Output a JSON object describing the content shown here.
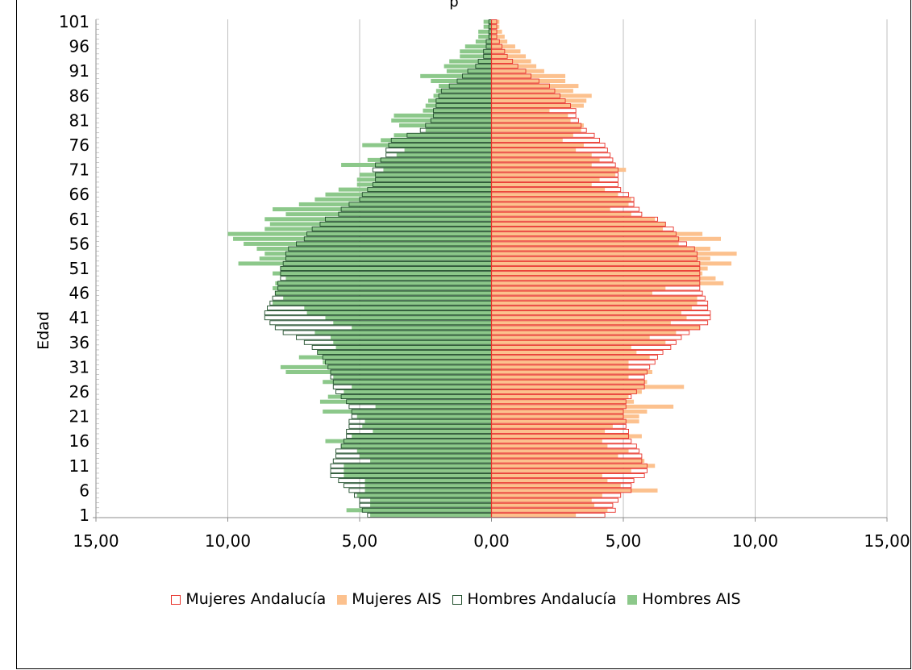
{
  "chart_data": {
    "type": "bar",
    "ylabel": "Edad",
    "xlim": [
      -15,
      15
    ],
    "x_ticks": [
      "15,00",
      "10,00",
      "5,00",
      "0,00",
      "5,00",
      "10,00",
      "15,00"
    ],
    "y_ticks": [
      "1",
      "6",
      "11",
      "16",
      "21",
      "26",
      "31",
      "36",
      "41",
      "46",
      "51",
      "56",
      "61",
      "66",
      "71",
      "76",
      "81",
      "86",
      "91",
      "96",
      "101"
    ],
    "legend_position": "bottom",
    "grid": true,
    "colors": {
      "mujeres_andalucia": "#e8332b",
      "mujeres_ais": "#fcc18e",
      "hombres_andalucia": "#1f4d2a",
      "hombres_ais": "#8cc88a"
    },
    "series": [
      {
        "name": "Mujeres Andalucía",
        "key": "mujeres_andalucia",
        "values": [
          4.3,
          4.7,
          4.6,
          4.8,
          4.9,
          5.3,
          5.3,
          5.4,
          5.8,
          5.9,
          5.9,
          5.7,
          5.7,
          5.6,
          5.5,
          5.3,
          5.2,
          5.2,
          5.1,
          5.1,
          5.0,
          5.0,
          5.1,
          5.1,
          5.3,
          5.5,
          5.8,
          5.8,
          5.8,
          5.9,
          6.0,
          6.2,
          6.3,
          6.5,
          6.8,
          7.0,
          7.2,
          7.5,
          7.9,
          8.2,
          8.3,
          8.3,
          8.2,
          8.2,
          8.1,
          8.0,
          7.9,
          7.9,
          7.9,
          7.9,
          7.9,
          7.9,
          7.8,
          7.8,
          7.7,
          7.4,
          7.1,
          7.0,
          6.9,
          6.6,
          6.3,
          5.7,
          5.6,
          5.4,
          5.4,
          5.2,
          4.9,
          4.8,
          4.8,
          4.8,
          4.8,
          4.7,
          4.6,
          4.5,
          4.4,
          4.3,
          4.1,
          3.9,
          3.6,
          3.4,
          3.3,
          3.2,
          3.2,
          3.0,
          2.8,
          2.6,
          2.4,
          2.2,
          1.8,
          1.5,
          1.3,
          1.0,
          0.8,
          0.6,
          0.5,
          0.4,
          0.3,
          0.2,
          0.2,
          0.2,
          0.2
        ],
        "value_unit": "%"
      },
      {
        "name": "Mujeres AIS",
        "key": "mujeres_ais",
        "values": [
          3.2,
          4.4,
          3.9,
          3.8,
          4.2,
          6.3,
          4.9,
          4.4,
          4.2,
          5.3,
          6.2,
          5.8,
          4.8,
          5.2,
          4.4,
          4.2,
          5.7,
          4.3,
          4.6,
          5.6,
          5.6,
          5.9,
          6.9,
          5.4,
          5.2,
          5.7,
          7.3,
          5.9,
          5.2,
          6.1,
          5.2,
          5.2,
          6.0,
          5.5,
          5.3,
          6.6,
          6.0,
          7.0,
          7.9,
          6.8,
          7.4,
          7.2,
          7.6,
          7.8,
          7.8,
          6.1,
          6.6,
          8.8,
          8.5,
          8.0,
          8.2,
          9.1,
          8.3,
          9.3,
          8.3,
          7.1,
          8.7,
          8.0,
          6.5,
          6.6,
          6.2,
          5.3,
          4.5,
          5.2,
          5.3,
          4.8,
          4.3,
          3.8,
          4.1,
          4.7,
          5.1,
          3.8,
          4.1,
          3.8,
          3.2,
          3.5,
          2.7,
          3.1,
          3.4,
          3.5,
          3.0,
          2.9,
          2.2,
          3.5,
          3.6,
          3.8,
          3.1,
          3.3,
          2.8,
          2.8,
          2.0,
          1.7,
          1.5,
          1.3,
          1.1,
          0.9,
          0.6,
          0.5,
          0.4,
          0.3,
          0.3
        ],
        "value_unit": "%"
      },
      {
        "name": "Hombres Andalucía",
        "key": "hombres_andalucia",
        "values": [
          4.7,
          4.9,
          5.0,
          5.0,
          5.2,
          5.4,
          5.6,
          5.8,
          6.1,
          6.1,
          6.1,
          6.0,
          5.9,
          5.9,
          5.7,
          5.6,
          5.5,
          5.5,
          5.4,
          5.4,
          5.3,
          5.3,
          5.4,
          5.5,
          5.7,
          5.9,
          6.0,
          6.0,
          6.1,
          6.1,
          6.2,
          6.3,
          6.4,
          6.6,
          6.8,
          7.1,
          7.4,
          7.9,
          8.2,
          8.4,
          8.6,
          8.6,
          8.5,
          8.4,
          8.3,
          8.2,
          8.1,
          8.1,
          8.0,
          8.0,
          8.0,
          7.9,
          7.8,
          7.8,
          7.7,
          7.4,
          7.1,
          7.0,
          6.8,
          6.5,
          6.3,
          5.8,
          5.7,
          5.4,
          5.0,
          4.9,
          4.7,
          4.5,
          4.4,
          4.4,
          4.5,
          4.4,
          4.2,
          4.0,
          4.0,
          3.9,
          3.8,
          3.2,
          2.7,
          2.5,
          2.3,
          2.2,
          2.2,
          2.1,
          2.1,
          2.0,
          1.9,
          1.6,
          1.3,
          1.1,
          0.9,
          0.6,
          0.5,
          0.3,
          0.3,
          0.2,
          0.2,
          0.1,
          0.1,
          0.1,
          0.1
        ],
        "value_unit": "%"
      },
      {
        "name": "Hombres AIS",
        "key": "hombres_ais",
        "values": [
          4.6,
          5.5,
          4.6,
          4.6,
          5.1,
          4.8,
          4.8,
          4.8,
          5.6,
          5.6,
          5.6,
          4.6,
          5.0,
          5.1,
          5.7,
          6.3,
          5.3,
          4.5,
          4.9,
          4.8,
          5.1,
          6.4,
          4.4,
          6.5,
          6.2,
          5.6,
          5.3,
          6.4,
          6.0,
          7.8,
          8.0,
          6.4,
          7.3,
          6.6,
          5.9,
          6.0,
          6.1,
          6.7,
          5.3,
          6.0,
          6.3,
          7.0,
          7.1,
          8.3,
          7.9,
          8.2,
          8.3,
          8.2,
          7.8,
          8.3,
          8.0,
          9.6,
          8.8,
          8.6,
          8.9,
          9.4,
          9.8,
          10.0,
          8.6,
          8.4,
          8.6,
          7.8,
          8.3,
          7.3,
          6.7,
          6.3,
          5.8,
          5.1,
          5.1,
          5.0,
          4.1,
          5.7,
          4.7,
          3.6,
          3.3,
          4.9,
          4.2,
          3.7,
          2.5,
          3.5,
          3.8,
          3.7,
          2.6,
          2.5,
          2.4,
          2.2,
          2.1,
          2.0,
          2.3,
          2.7,
          1.7,
          1.8,
          1.6,
          1.2,
          1.2,
          1.0,
          0.6,
          0.5,
          0.5,
          0.3,
          0.3
        ],
        "value_unit": "%"
      }
    ]
  },
  "title_fragment": "p"
}
